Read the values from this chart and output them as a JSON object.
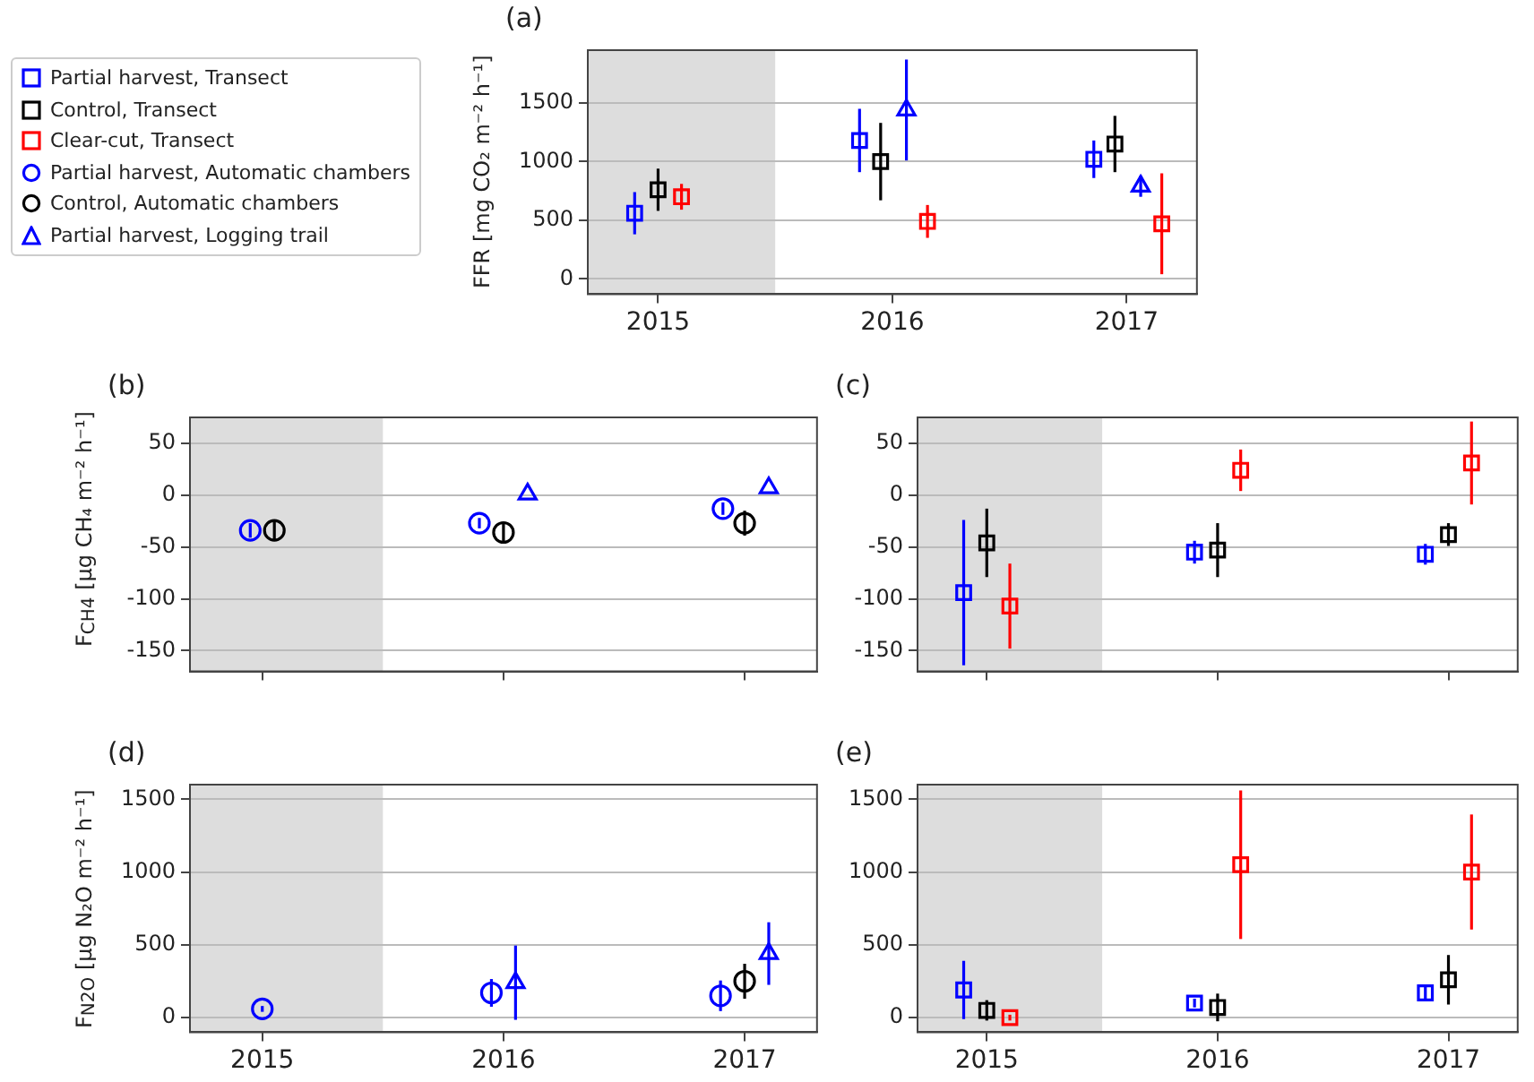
{
  "chart_data": [
    {
      "type": "scatter",
      "title": "(a)",
      "ylabel": "FFR [mg CO₂ m⁻² h⁻¹]",
      "xlim": [
        2014.7,
        2017.3
      ],
      "xticks": [
        2015,
        2016,
        2017
      ],
      "ylim": [
        -130,
        1950
      ],
      "yticks": [
        0,
        500,
        1000,
        1500
      ],
      "grid": "y",
      "legend": "left",
      "bands": [
        {
          "axis": "x",
          "from": 2014.7,
          "to": 2015.5,
          "color": "#dddddd"
        }
      ],
      "series": [
        {
          "name": "Partial harvest, Transect",
          "color": "#0000ff",
          "marker": "square",
          "x": [
            2014.9,
            2015.86,
            2016.86
          ],
          "values": [
            560,
            1180,
            1020
          ],
          "errors": [
            180,
            270,
            160
          ]
        },
        {
          "name": "Control, Transect",
          "color": "#000000",
          "marker": "square",
          "x": [
            2015,
            2015.95,
            2016.95
          ],
          "values": [
            760,
            1000,
            1150
          ],
          "errors": [
            180,
            330,
            240
          ]
        },
        {
          "name": "Clear-cut, Transect",
          "color": "#ff0000",
          "marker": "square",
          "x": [
            2015.1,
            2016.15,
            2017.15
          ],
          "values": [
            700,
            490,
            470
          ],
          "errors": [
            110,
            140,
            430
          ]
        },
        {
          "name": "Partial harvest, Automatic chambers",
          "color": "#0000ff",
          "marker": "circle"
        },
        {
          "name": "Control, Automatic chambers",
          "color": "#000000",
          "marker": "circle"
        },
        {
          "name": "Partial harvest, Logging trail",
          "color": "#0000ff",
          "marker": "triangle",
          "x": [
            2016.06,
            2017.06
          ],
          "values": [
            1440,
            790
          ],
          "errors": [
            430,
            90
          ]
        }
      ]
    },
    {
      "type": "scatter",
      "title": "(b)",
      "ylabel": "F$_{CH4}$ [µg CH₄ m⁻² h⁻¹]",
      "xlim": [
        2014.7,
        2017.3
      ],
      "xticks": [
        {
          "value": 2015,
          "label": null
        },
        {
          "value": 2016,
          "label": null
        },
        {
          "value": 2017,
          "label": null
        }
      ],
      "ylim": [
        -170,
        75
      ],
      "yticks": [
        -150,
        -100,
        -50,
        0,
        50
      ],
      "grid": "y",
      "tick_labels": "y",
      "bands": [
        {
          "axis": "x",
          "from": 2014.7,
          "to": 2015.5,
          "color": "#dddddd"
        }
      ],
      "series": [
        {
          "color": "#0000ff",
          "marker": "circle",
          "x": [
            2014.95,
            2015.9,
            2016.91
          ],
          "values": [
            -34,
            -27,
            -13
          ],
          "errors": [
            7,
            5,
            6
          ]
        },
        {
          "color": "#000000",
          "marker": "circle",
          "x": [
            2015.05,
            2016,
            2017
          ],
          "values": [
            -34,
            -36,
            -27
          ],
          "errors": [
            9,
            10,
            12
          ]
        },
        {
          "color": "#0000ff",
          "marker": "triangle",
          "x": [
            2016.1,
            2017.1
          ],
          "values": [
            1,
            7
          ]
        }
      ]
    },
    {
      "type": "scatter",
      "title": "(c)",
      "xlim": [
        2014.7,
        2017.3
      ],
      "xticks": [
        {
          "value": 2015,
          "label": null
        },
        {
          "value": 2016,
          "label": null
        },
        {
          "value": 2017,
          "label": null
        }
      ],
      "ylim": [
        -170,
        75
      ],
      "yticks": [
        -150,
        -100,
        -50,
        0,
        50
      ],
      "grid": "y",
      "tick_labels": "y",
      "bands": [
        {
          "axis": "x",
          "from": 2014.7,
          "to": 2015.5,
          "color": "#dddddd"
        }
      ],
      "series": [
        {
          "color": "#0000ff",
          "marker": "square",
          "x": [
            2014.9,
            2015.9,
            2016.9
          ],
          "values": [
            -94,
            -55,
            -57
          ],
          "errors": [
            70,
            11,
            10
          ]
        },
        {
          "color": "#000000",
          "marker": "square",
          "x": [
            2015,
            2016,
            2017
          ],
          "values": [
            -46,
            -53,
            -38
          ],
          "errors": [
            33,
            26,
            11
          ]
        },
        {
          "color": "#ff0000",
          "marker": "square",
          "x": [
            2015.1,
            2016.1,
            2017.1
          ],
          "values": [
            -107,
            24,
            31
          ],
          "errors": [
            41,
            20,
            40
          ]
        }
      ]
    },
    {
      "type": "scatter",
      "title": "(d)",
      "ylabel": "F$_{N2O}$ [µg N₂O m⁻² h⁻¹]",
      "xlim": [
        2014.7,
        2017.3
      ],
      "xticks": [
        2015,
        2016,
        2017
      ],
      "ylim": [
        -100,
        1600
      ],
      "yticks": [
        0,
        500,
        1000,
        1500
      ],
      "grid": "y",
      "bands": [
        {
          "axis": "x",
          "from": 2014.7,
          "to": 2015.5,
          "color": "#dddddd"
        }
      ],
      "series": [
        {
          "color": "#0000ff",
          "marker": "circle",
          "x": [
            2015,
            2015.95,
            2016.9
          ],
          "values": [
            60,
            170,
            150
          ],
          "errors": [
            20,
            95,
            105
          ]
        },
        {
          "color": "#000000",
          "marker": "circle",
          "x": [
            2017
          ],
          "values": [
            250
          ],
          "errors": [
            120
          ]
        },
        {
          "color": "#0000ff",
          "marker": "triangle",
          "x": [
            2016.05,
            2017.1
          ],
          "values": [
            240,
            440
          ],
          "errors": [
            255,
            215
          ]
        }
      ]
    },
    {
      "type": "scatter",
      "title": "(e)",
      "xlim": [
        2014.7,
        2017.3
      ],
      "xticks": [
        2015,
        2016,
        2017
      ],
      "ylim": [
        -100,
        1600
      ],
      "yticks": [
        0,
        500,
        1000,
        1500
      ],
      "grid": "y",
      "bands": [
        {
          "axis": "x",
          "from": 2014.7,
          "to": 2015.5,
          "color": "#dddddd"
        }
      ],
      "series": [
        {
          "color": "#0000ff",
          "marker": "square",
          "x": [
            2014.9,
            2015.9,
            2016.9
          ],
          "values": [
            190,
            100,
            170
          ],
          "errors": [
            200,
            30,
            55
          ]
        },
        {
          "color": "#000000",
          "marker": "square",
          "x": [
            2015,
            2016,
            2017
          ],
          "values": [
            50,
            70,
            260
          ],
          "errors": [
            70,
            95,
            170
          ]
        },
        {
          "color": "#ff0000",
          "marker": "square",
          "x": [
            2015.1,
            2016.1,
            2017.1
          ],
          "values": [
            0,
            1050,
            1000
          ],
          "errors": [
            20,
            510,
            395
          ]
        }
      ]
    }
  ]
}
